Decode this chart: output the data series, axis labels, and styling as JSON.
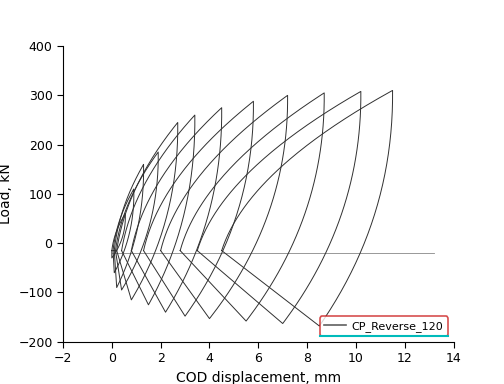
{
  "xlabel": "COD displacement, mm",
  "ylabel": "Load, kN",
  "xlim": [
    -2,
    14
  ],
  "ylim": [
    -200,
    400
  ],
  "xticks": [
    -2,
    0,
    2,
    4,
    6,
    8,
    10,
    12,
    14
  ],
  "yticks": [
    -200,
    -100,
    0,
    100,
    200,
    300,
    400
  ],
  "legend_label": "CP_Reverse_120",
  "legend_line_color": "#606060",
  "legend_border_color_top": "#cc2222",
  "legend_border_color_bottom": "#00bbbb",
  "line_color": "#303030",
  "background_color": "#ffffff",
  "cycles": [
    {
      "x_base": 0.0,
      "x_peak": 0.55,
      "y_peak": 60,
      "x_valley": 0.0,
      "y_valley": -30,
      "x_unload_ctrl": 0.6
    },
    {
      "x_base": 0.05,
      "x_peak": 0.9,
      "y_peak": 110,
      "x_valley": 0.1,
      "y_valley": -60,
      "x_unload_ctrl": 0.95
    },
    {
      "x_base": 0.1,
      "x_peak": 1.3,
      "y_peak": 160,
      "x_valley": 0.2,
      "y_valley": -90,
      "x_unload_ctrl": 1.35
    },
    {
      "x_base": 0.15,
      "x_peak": 1.9,
      "y_peak": 185,
      "x_valley": 0.4,
      "y_valley": -95,
      "x_unload_ctrl": 1.95
    },
    {
      "x_base": 0.2,
      "x_peak": 2.7,
      "y_peak": 245,
      "x_valley": 0.8,
      "y_valley": -115,
      "x_unload_ctrl": 2.75
    },
    {
      "x_base": 0.4,
      "x_peak": 3.4,
      "y_peak": 260,
      "x_valley": 1.5,
      "y_valley": -125,
      "x_unload_ctrl": 3.45
    },
    {
      "x_base": 0.8,
      "x_peak": 4.5,
      "y_peak": 275,
      "x_valley": 2.2,
      "y_valley": -140,
      "x_unload_ctrl": 4.55
    },
    {
      "x_base": 1.3,
      "x_peak": 5.8,
      "y_peak": 288,
      "x_valley": 3.0,
      "y_valley": -148,
      "x_unload_ctrl": 5.85
    },
    {
      "x_base": 2.0,
      "x_peak": 7.2,
      "y_peak": 300,
      "x_valley": 4.0,
      "y_valley": -153,
      "x_unload_ctrl": 7.25
    },
    {
      "x_base": 2.8,
      "x_peak": 8.7,
      "y_peak": 305,
      "x_valley": 5.5,
      "y_valley": -158,
      "x_unload_ctrl": 8.75
    },
    {
      "x_base": 3.5,
      "x_peak": 10.2,
      "y_peak": 308,
      "x_valley": 7.0,
      "y_valley": -163,
      "x_unload_ctrl": 10.25
    },
    {
      "x_base": 4.5,
      "x_peak": 11.5,
      "y_peak": 310,
      "x_valley": 8.5,
      "y_valley": -168,
      "x_unload_ctrl": 11.55
    }
  ]
}
